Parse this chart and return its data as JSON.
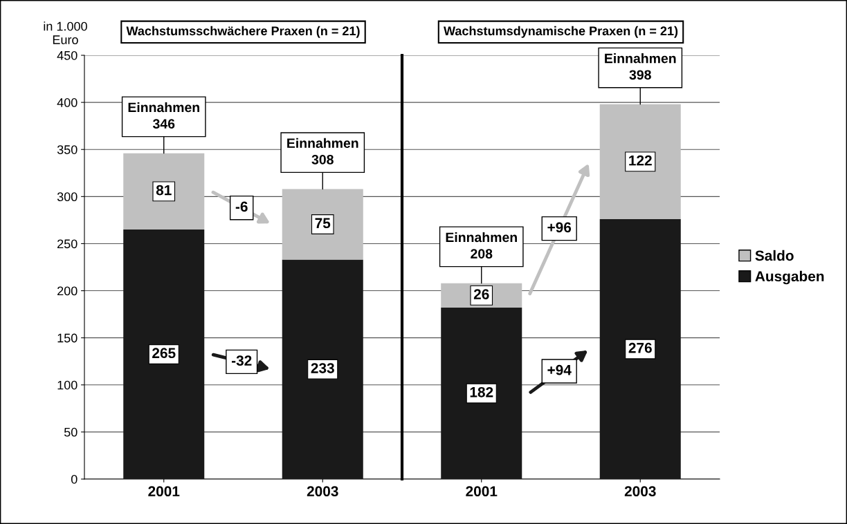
{
  "chart_data": [
    {
      "type": "bar",
      "title": "Wachstumsschwächere Praxen (n = 21)",
      "ylabel": "in 1.000\nEuro",
      "categories": [
        "2001",
        "2003"
      ],
      "stacked": true,
      "series": [
        {
          "color": "#1a1a1a",
          "values": [
            265,
            233
          ]
        },
        {
          "color": "#c0c0c0",
          "values": [
            81,
            75
          ]
        }
      ],
      "ylim": [
        0,
        450
      ],
      "yticks": [
        0,
        50,
        100,
        150,
        200,
        250,
        300,
        350,
        400,
        450
      ],
      "grid": "y",
      "data_labels": true,
      "totals": [
        "Einnahmen\n346",
        "Einnahmen\n308"
      ],
      "annotations": [
        "-32",
        "-6"
      ]
    },
    {
      "type": "bar",
      "title": "Wachstumsdynamische Praxen (n = 21)",
      "categories": [
        "2001",
        "2003"
      ],
      "stacked": true,
      "series": [
        {
          "name": "Ausgaben",
          "color": "#1a1a1a",
          "values": [
            182,
            276
          ]
        },
        {
          "name": "Saldo",
          "color": "#c0c0c0",
          "values": [
            26,
            122
          ]
        }
      ],
      "ylim": [
        0,
        450
      ],
      "yticks": [
        0,
        50,
        100,
        150,
        200,
        250,
        300,
        350,
        400,
        450
      ],
      "grid": "y",
      "data_labels": true,
      "tick_labels": "x",
      "legend": "right",
      "totals": [
        "Einnahmen\n208",
        "Einnahmen\n398"
      ],
      "annotations": [
        "+94",
        "+96"
      ]
    }
  ]
}
